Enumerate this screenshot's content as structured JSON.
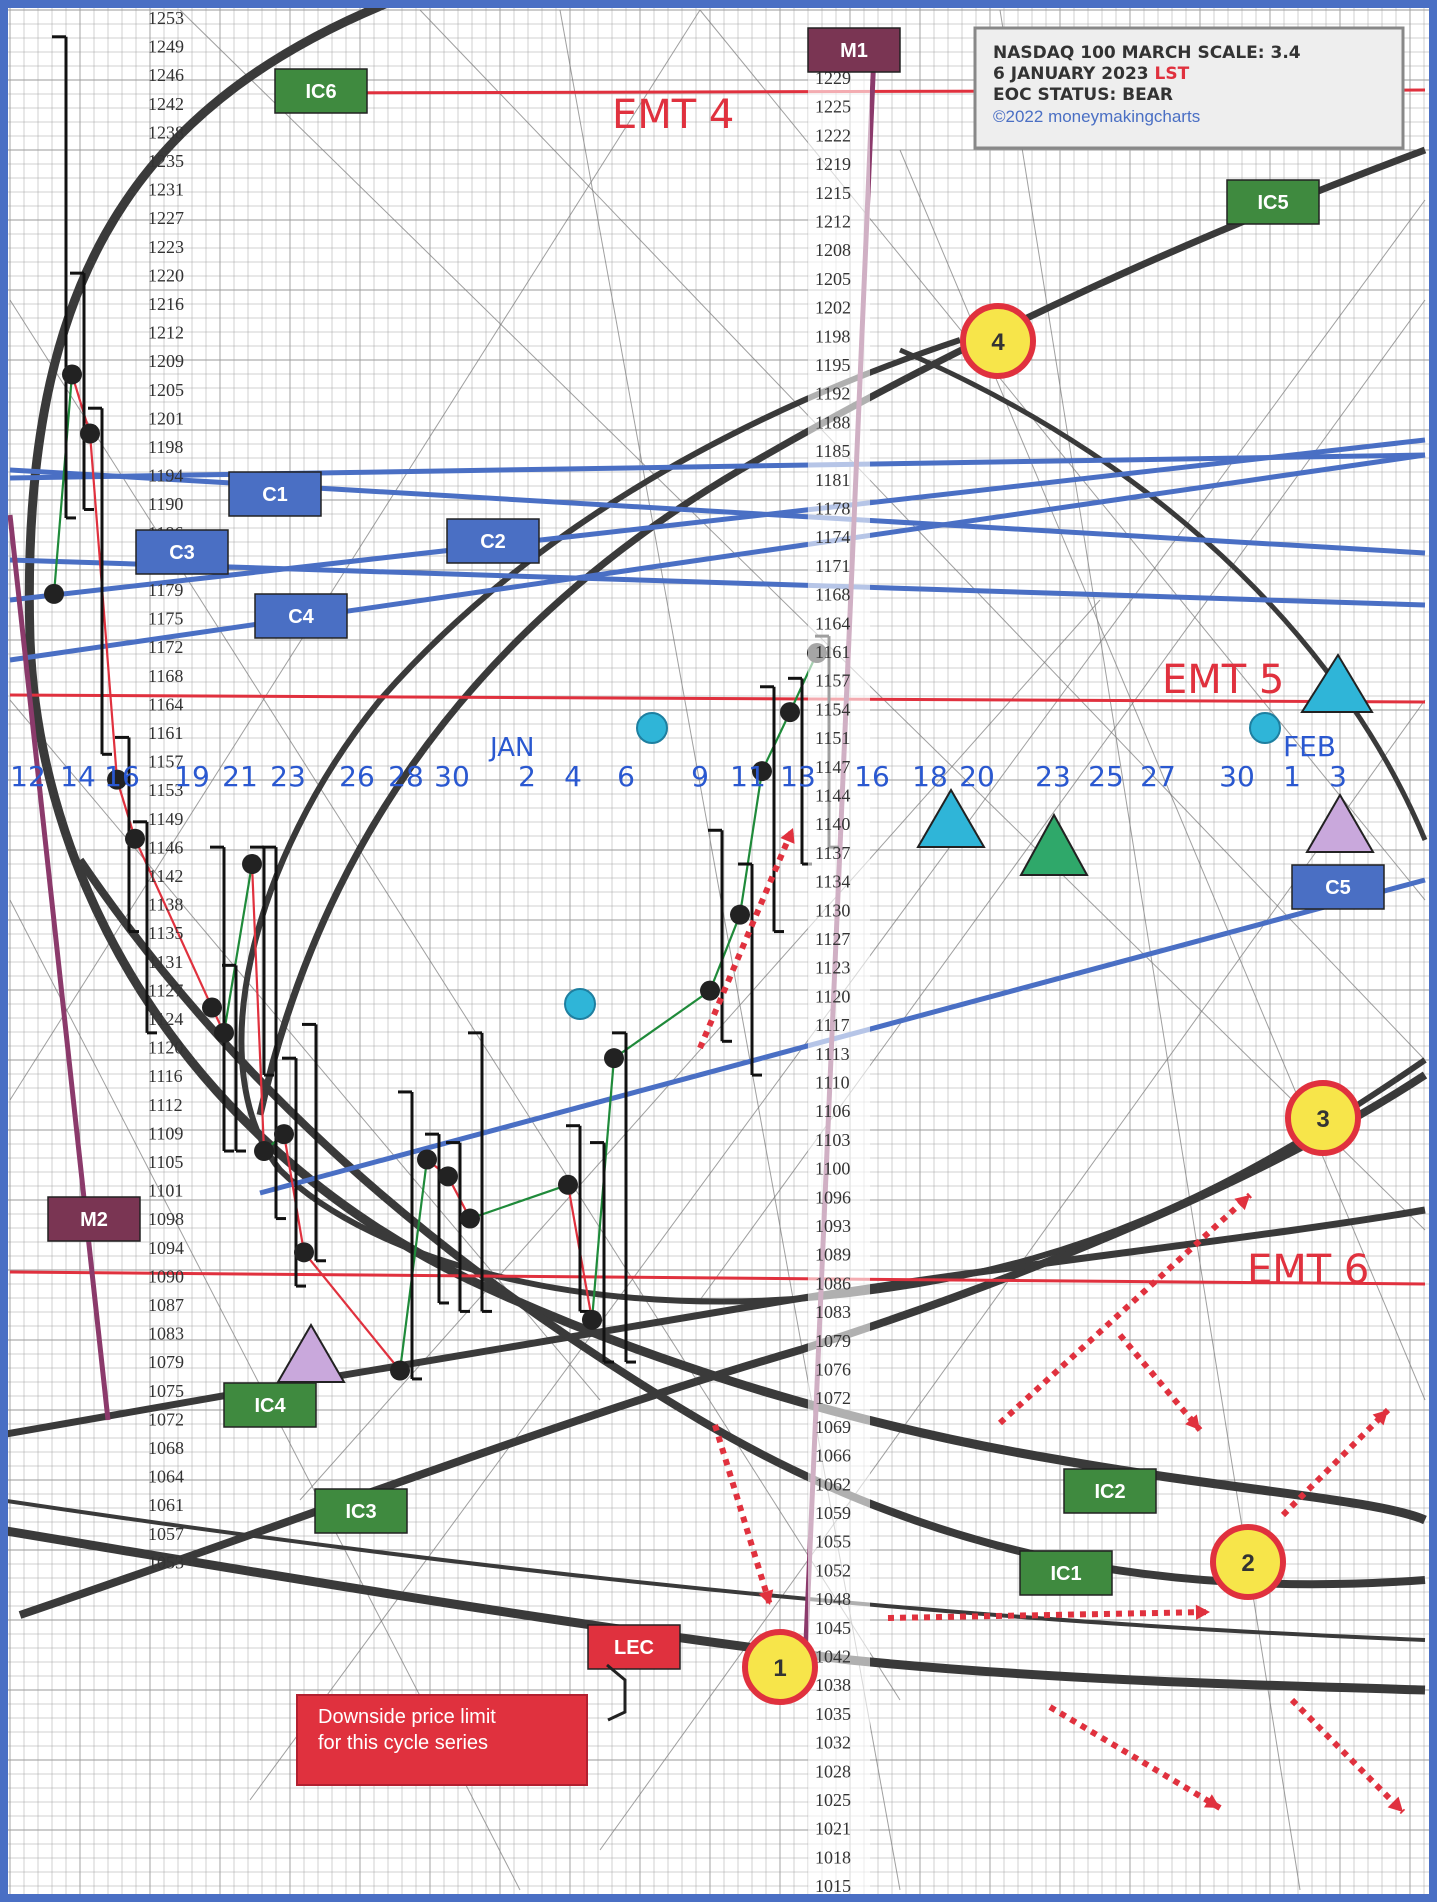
{
  "info_box": {
    "line1": "NASDAQ 100 MARCH SCALE:  3.4",
    "line2_prefix": "6 JANUARY 2023 ",
    "line2_suffix": "LST",
    "line3": "EOC STATUS: BEAR",
    "line4": "©2022 moneymakingcharts"
  },
  "colors": {
    "border": "#4a6fc4",
    "grid": "#9a9a9a",
    "curve": "#3a3a3a",
    "emt": "#e0313e",
    "trend": "#4a6fc4",
    "magenta_line": "#8b3a6b",
    "label_green": "#3f8a3f",
    "label_blue": "#4a6fc4",
    "label_maroon": "#7a3553",
    "label_red": "#e0313e",
    "circle_yellow": "#f7e54a",
    "circle_cyan": "#2fb5d8",
    "tri_cyan": "#2fb5d8",
    "tri_green": "#2fa86a",
    "tri_lilac": "#c9a8dc",
    "arrow_red": "#e0313e",
    "date_blue": "#2a58d0",
    "price_text": "#333333"
  },
  "chart_data": {
    "type": "bar",
    "title": "NASDAQ 100 MARCH SCALE:  3.4",
    "y_ticks_left": [
      "1253",
      "1249",
      "1246",
      "1242",
      "1238",
      "1235",
      "1231",
      "1227",
      "1223",
      "1220",
      "1216",
      "1212",
      "1209",
      "1205",
      "1201",
      "1198",
      "1194",
      "1190",
      "1186",
      "1183",
      "1179",
      "1175",
      "1172",
      "1168",
      "1164",
      "1161",
      "1157",
      "1153",
      "1149",
      "1146",
      "1142",
      "1138",
      "1135",
      "1131",
      "1127",
      "1124",
      "1120",
      "1116",
      "1112",
      "1109",
      "1105",
      "1101",
      "1098",
      "1094",
      "1090",
      "1087",
      "1083",
      "1079",
      "1075",
      "1072",
      "1068",
      "1064",
      "1061",
      "1057",
      "1053"
    ],
    "y_ticks_center": [
      "1229",
      "1225",
      "1222",
      "1219",
      "1215",
      "1212",
      "1208",
      "1205",
      "1202",
      "1198",
      "1195",
      "1192",
      "1188",
      "1185",
      "1181",
      "1178",
      "1174",
      "1171",
      "1168",
      "1164",
      "1161",
      "1157",
      "1154",
      "1151",
      "1147",
      "1144",
      "1140",
      "1137",
      "1134",
      "1130",
      "1127",
      "1123",
      "1120",
      "1117",
      "1113",
      "1110",
      "1106",
      "1103",
      "1100",
      "1096",
      "1093",
      "1089",
      "1086",
      "1083",
      "1079",
      "1076",
      "1072",
      "1069",
      "1066",
      "1062",
      "1059",
      "1055",
      "1052",
      "1048",
      "1045",
      "1042",
      "1038",
      "1035",
      "1032",
      "1028",
      "1025",
      "1021",
      "1018",
      "1015"
    ],
    "x_dates": [
      "12",
      "14",
      "16",
      "19",
      "21",
      "23",
      "26",
      "28",
      "30",
      "2",
      "4",
      "6",
      "9",
      "11",
      "13",
      "16",
      "18",
      "20",
      "23",
      "25",
      "27",
      "30",
      "1",
      "3"
    ],
    "month_labels": [
      "JAN",
      "FEB"
    ],
    "ohlc_bars": [
      {
        "date": "12",
        "high": 1234,
        "low": 1177,
        "close": 1168
      },
      {
        "date": "13",
        "high": 1206,
        "low": 1178,
        "close": 1194
      },
      {
        "date": "14",
        "high": 1190,
        "low": 1149,
        "close": 1187
      },
      {
        "date": "15",
        "high": 1151,
        "low": 1128,
        "close": 1146
      },
      {
        "date": "16",
        "high": 1141,
        "low": 1116,
        "close": 1139
      },
      {
        "date": "19",
        "high": 1138,
        "low": 1102,
        "close": 1119
      },
      {
        "date": "20",
        "high": 1124,
        "low": 1102,
        "close": 1116
      },
      {
        "date": "21",
        "high": 1138,
        "low": 1111,
        "close": 1136
      },
      {
        "date": "22",
        "high": 1138,
        "low": 1094,
        "close": 1102
      },
      {
        "date": "23",
        "high": 1113,
        "low": 1086,
        "close": 1104
      },
      {
        "date": "27",
        "high": 1117,
        "low": 1089,
        "close": 1090
      },
      {
        "date": "28",
        "high": 1109,
        "low": 1075,
        "close": 1076
      },
      {
        "date": "29",
        "high": 1104,
        "low": 1084,
        "close": 1101
      },
      {
        "date": "30",
        "high": 1103,
        "low": 1083,
        "close": 1099
      },
      {
        "date": "3",
        "high": 1116,
        "low": 1083,
        "close": 1094
      },
      {
        "date": "4",
        "high": 1105,
        "low": 1083,
        "close": 1098
      },
      {
        "date": "5",
        "high": 1103,
        "low": 1077,
        "close": 1082
      },
      {
        "date": "6",
        "high": 1116,
        "low": 1077,
        "close": 1113
      },
      {
        "date": "9",
        "high": 1140,
        "low": 1115,
        "close": 1121
      },
      {
        "date": "10",
        "high": 1136,
        "low": 1111,
        "close": 1130
      },
      {
        "date": "11",
        "high": 1157,
        "low": 1128,
        "close": 1147
      },
      {
        "date": "12",
        "high": 1158,
        "low": 1136,
        "close": 1154
      },
      {
        "date": "13",
        "high": 1163,
        "low": 1138,
        "close": 1161
      }
    ],
    "horizontal_lines": [
      {
        "name": "EMT 4",
        "price": 1229
      },
      {
        "name": "EMT 5",
        "price": 1160
      },
      {
        "name": "EMT 6",
        "price": 1090
      }
    ],
    "legend": "none",
    "grid": true
  },
  "labels": {
    "emt4": "EMT 4",
    "emt5": "EMT 5",
    "emt6": "EMT 6",
    "m1": "M1",
    "m2": "M2",
    "ic1": "IC1",
    "ic2": "IC2",
    "ic3": "IC3",
    "ic4": "IC4",
    "ic5": "IC5",
    "ic6": "IC6",
    "c1": "C1",
    "c2": "C2",
    "c3": "C3",
    "c4": "C4",
    "c5": "C5",
    "lec": "LEC",
    "downside_line1": "Downside price limit",
    "downside_line2": "for this cycle series",
    "circle1": "1",
    "circle2": "2",
    "circle3": "3",
    "circle4": "4"
  }
}
